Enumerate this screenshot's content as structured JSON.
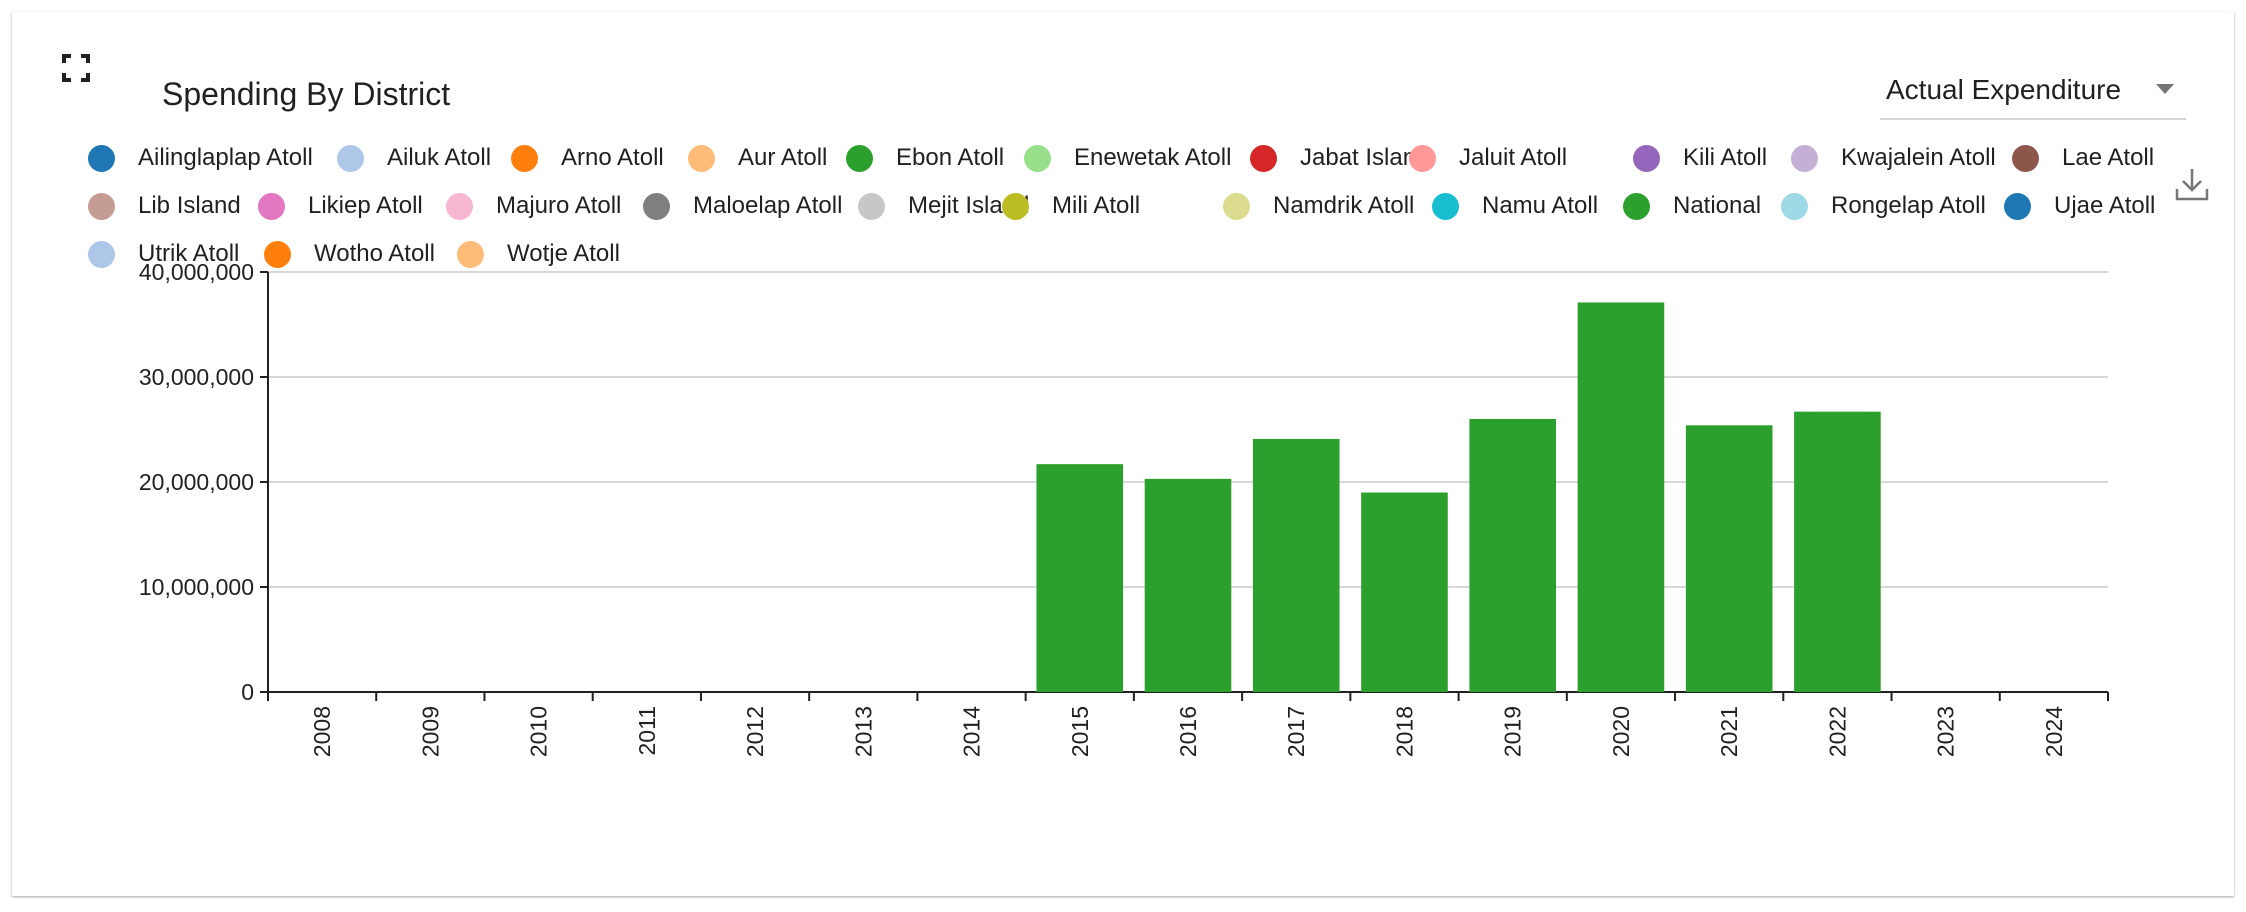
{
  "title": "Spending By District",
  "select": {
    "value": "Actual Expenditure"
  },
  "icons": {
    "fullscreen": "fullscreen-icon",
    "download": "download-icon"
  },
  "legend": [
    {
      "label": "Ailinglaplap Atoll",
      "color": "#1f77b4"
    },
    {
      "label": "Ailuk Atoll",
      "color": "#aec7e8"
    },
    {
      "label": "Arno Atoll",
      "color": "#ff7f0e"
    },
    {
      "label": "Aur Atoll",
      "color": "#ffbb78"
    },
    {
      "label": "Ebon Atoll",
      "color": "#2ca02c"
    },
    {
      "label": "Enewetak Atoll",
      "color": "#98df8a"
    },
    {
      "label": "Jabat Island",
      "color": "#d62728"
    },
    {
      "label": "Jaluit Atoll",
      "color": "#ff9896"
    },
    {
      "label": "Kili Atoll",
      "color": "#9467bd"
    },
    {
      "label": "Kwajalein Atoll",
      "color": "#c5b0d5"
    },
    {
      "label": "Lae Atoll",
      "color": "#8c564b"
    },
    {
      "label": "Lib Island",
      "color": "#c49c94"
    },
    {
      "label": "Likiep Atoll",
      "color": "#e377c2"
    },
    {
      "label": "Majuro Atoll",
      "color": "#f7b6d2"
    },
    {
      "label": "Maloelap Atoll",
      "color": "#7f7f7f"
    },
    {
      "label": "Mejit Island",
      "color": "#c7c7c7"
    },
    {
      "label": "Mili Atoll",
      "color": "#bcbd22"
    },
    {
      "label": "Namdrik Atoll",
      "color": "#dbdb8d"
    },
    {
      "label": "Namu Atoll",
      "color": "#17becf"
    },
    {
      "label": "National",
      "color": "#2ca02c"
    },
    {
      "label": "Rongelap Atoll",
      "color": "#9edae5"
    },
    {
      "label": "Ujae Atoll",
      "color": "#1f77b4"
    },
    {
      "label": "Utrik Atoll",
      "color": "#aec7e8"
    },
    {
      "label": "Wotho Atoll",
      "color": "#ff7f0e"
    },
    {
      "label": "Wotje Atoll",
      "color": "#ffbb78"
    }
  ],
  "chart_data": {
    "type": "bar",
    "stacked": true,
    "title": "Spending By District",
    "xlabel": "",
    "ylabel": "",
    "ylim": [
      0,
      40000000
    ],
    "yticks": [
      "0",
      "10,000,000",
      "20,000,000",
      "30,000,000",
      "40,000,000"
    ],
    "grid": true,
    "legend_position": "top",
    "categories": [
      "2008",
      "2009",
      "2010",
      "2011",
      "2012",
      "2013",
      "2014",
      "2015",
      "2016",
      "2017",
      "2018",
      "2019",
      "2020",
      "2021",
      "2022",
      "2023",
      "2024"
    ],
    "series": [
      {
        "name": "National",
        "color": "#2ca02c",
        "values": [
          0,
          0,
          0,
          0,
          0,
          0,
          0,
          21700000,
          20300000,
          24100000,
          19000000,
          26000000,
          37100000,
          25400000,
          26700000,
          0,
          0
        ]
      }
    ]
  }
}
